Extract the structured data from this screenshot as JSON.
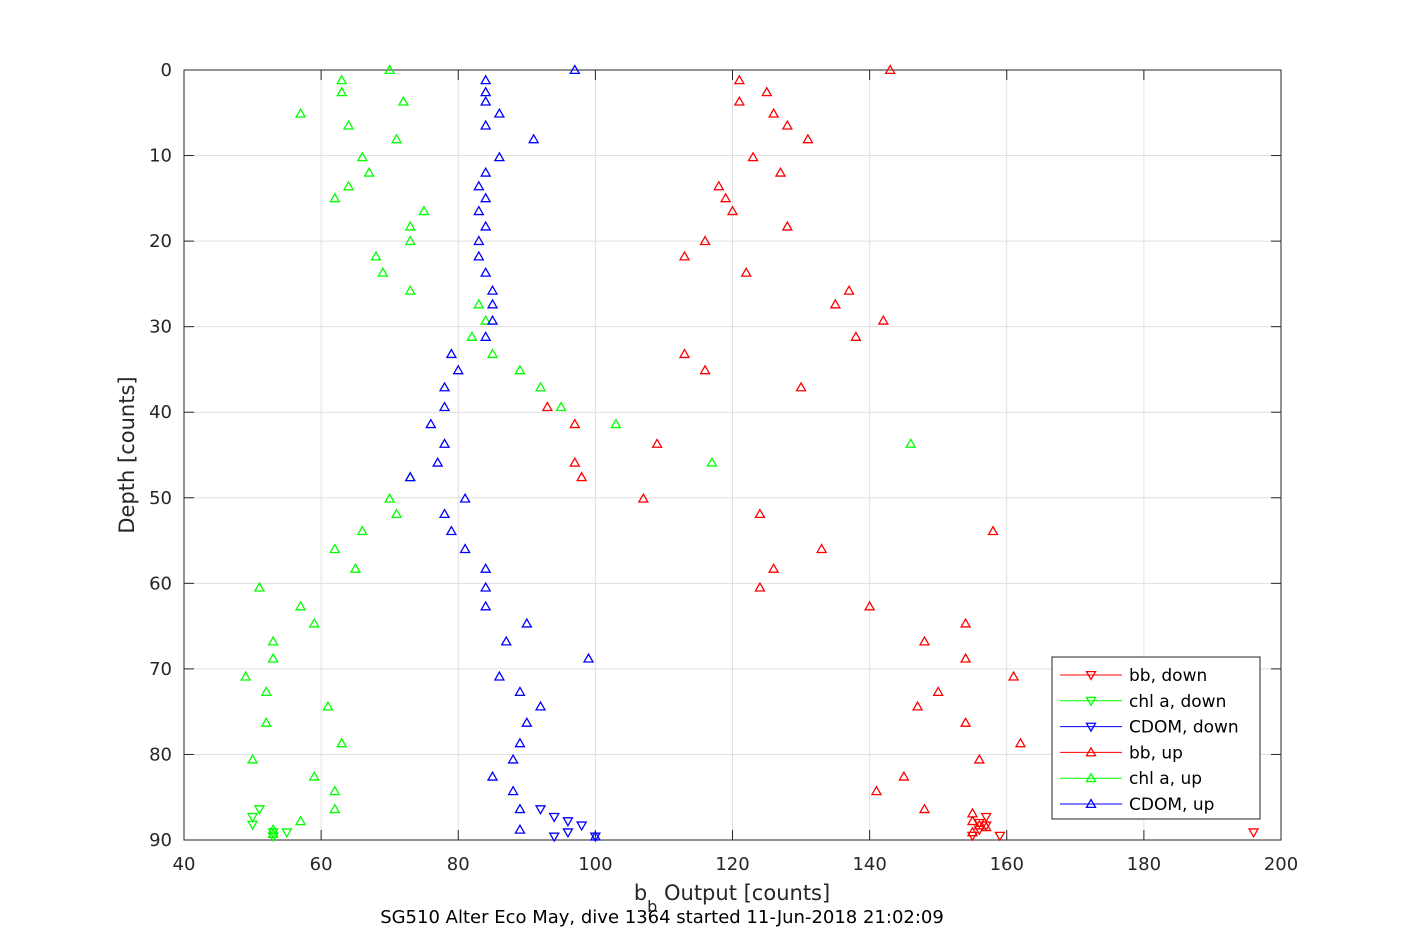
{
  "chart_data": {
    "type": "scatter",
    "xlabel_main": "b",
    "xlabel_sub": "b",
    "xlabel_rest": " Output [counts]",
    "ylabel": "Depth [counts]",
    "caption": "SG510 Alter Eco May, dive 1364 started 11-Jun-2018 21:02:09",
    "xlim": [
      40,
      200
    ],
    "ylim": [
      0,
      90
    ],
    "y_reversed": true,
    "grid": true,
    "xticks": [
      "40",
      "60",
      "80",
      "100",
      "120",
      "140",
      "160",
      "180",
      "200"
    ],
    "yticks": [
      "0",
      "10",
      "20",
      "30",
      "40",
      "50",
      "60",
      "70",
      "80",
      "90"
    ],
    "legend_position": "bottom-right",
    "series": [
      {
        "name": "bb, down",
        "color": "#ff0000",
        "marker": "triangle-down",
        "points": [
          [
            157,
            87.3
          ],
          [
            156,
            88
          ],
          [
            157,
            88.3
          ],
          [
            156,
            88.8
          ],
          [
            155,
            89.5
          ],
          [
            159,
            89.5
          ],
          [
            196,
            89.1
          ]
        ]
      },
      {
        "name": "chl a, down",
        "color": "#00ff00",
        "marker": "triangle-down",
        "points": [
          [
            51,
            86.4
          ],
          [
            50,
            87.3
          ],
          [
            50,
            88.2
          ],
          [
            53,
            89.1
          ],
          [
            55,
            89.1
          ],
          [
            53,
            89.6
          ]
        ]
      },
      {
        "name": "CDOM, down",
        "color": "#0000ff",
        "marker": "triangle-down",
        "points": [
          [
            92,
            86.4
          ],
          [
            94,
            87.3
          ],
          [
            96,
            87.8
          ],
          [
            98,
            88.3
          ],
          [
            96,
            89.1
          ],
          [
            94,
            89.6
          ],
          [
            100,
            89.6
          ]
        ]
      },
      {
        "name": "bb, up",
        "color": "#ff0000",
        "marker": "triangle-up",
        "points": [
          [
            143,
            0
          ],
          [
            121,
            1.2
          ],
          [
            125,
            2.6
          ],
          [
            121,
            3.7
          ],
          [
            126,
            5.1
          ],
          [
            128,
            6.5
          ],
          [
            131,
            8.1
          ],
          [
            123,
            10.2
          ],
          [
            127,
            12
          ],
          [
            118,
            13.6
          ],
          [
            119,
            15
          ],
          [
            120,
            16.5
          ],
          [
            128,
            18.3
          ],
          [
            116,
            20
          ],
          [
            113,
            21.8
          ],
          [
            122,
            23.7
          ],
          [
            137,
            25.8
          ],
          [
            135,
            27.4
          ],
          [
            142,
            29.3
          ],
          [
            138,
            31.2
          ],
          [
            113,
            33.2
          ],
          [
            116,
            35.1
          ],
          [
            130,
            37.1
          ],
          [
            93,
            39.4
          ],
          [
            97,
            41.4
          ],
          [
            109,
            43.7
          ],
          [
            97,
            45.9
          ],
          [
            98,
            47.6
          ],
          [
            107,
            50.1
          ],
          [
            124,
            51.9
          ],
          [
            158,
            53.9
          ],
          [
            133,
            56
          ],
          [
            126,
            58.3
          ],
          [
            124,
            60.5
          ],
          [
            140,
            62.7
          ],
          [
            154,
            64.7
          ],
          [
            148,
            66.8
          ],
          [
            154,
            68.8
          ],
          [
            161,
            70.9
          ],
          [
            150,
            72.7
          ],
          [
            147,
            74.4
          ],
          [
            154,
            76.3
          ],
          [
            162,
            78.7
          ],
          [
            156,
            80.6
          ],
          [
            145,
            82.6
          ],
          [
            141,
            84.3
          ],
          [
            148,
            86.4
          ],
          [
            155,
            86.9
          ],
          [
            155,
            87.8
          ],
          [
            156,
            88.3
          ],
          [
            157,
            88.5
          ],
          [
            155,
            89.1
          ]
        ]
      },
      {
        "name": "chl a, up",
        "color": "#00ff00",
        "marker": "triangle-up",
        "points": [
          [
            70,
            0
          ],
          [
            63,
            1.2
          ],
          [
            63,
            2.6
          ],
          [
            72,
            3.7
          ],
          [
            57,
            5.1
          ],
          [
            64,
            6.5
          ],
          [
            71,
            8.1
          ],
          [
            66,
            10.2
          ],
          [
            67,
            12
          ],
          [
            64,
            13.6
          ],
          [
            62,
            15
          ],
          [
            75,
            16.5
          ],
          [
            73,
            18.3
          ],
          [
            73,
            20
          ],
          [
            68,
            21.8
          ],
          [
            69,
            23.7
          ],
          [
            73,
            25.8
          ],
          [
            83,
            27.4
          ],
          [
            84,
            29.3
          ],
          [
            82,
            31.2
          ],
          [
            85,
            33.2
          ],
          [
            89,
            35.1
          ],
          [
            92,
            37.1
          ],
          [
            95,
            39.4
          ],
          [
            103,
            41.4
          ],
          [
            146,
            43.7
          ],
          [
            117,
            45.9
          ],
          [
            73,
            47.6
          ],
          [
            70,
            50.1
          ],
          [
            71,
            51.9
          ],
          [
            66,
            53.9
          ],
          [
            62,
            56
          ],
          [
            65,
            58.3
          ],
          [
            51,
            60.5
          ],
          [
            57,
            62.7
          ],
          [
            59,
            64.7
          ],
          [
            53,
            66.8
          ],
          [
            53,
            68.8
          ],
          [
            49,
            70.9
          ],
          [
            52,
            72.7
          ],
          [
            61,
            74.4
          ],
          [
            52,
            76.3
          ],
          [
            63,
            78.7
          ],
          [
            50,
            80.6
          ],
          [
            59,
            82.6
          ],
          [
            62,
            84.3
          ],
          [
            62,
            86.4
          ],
          [
            57,
            87.8
          ],
          [
            53,
            88.8
          ],
          [
            53,
            89.3
          ]
        ]
      },
      {
        "name": "CDOM, up",
        "color": "#0000ff",
        "marker": "triangle-up",
        "points": [
          [
            97,
            0
          ],
          [
            84,
            1.2
          ],
          [
            84,
            2.6
          ],
          [
            84,
            3.7
          ],
          [
            86,
            5.1
          ],
          [
            84,
            6.5
          ],
          [
            91,
            8.1
          ],
          [
            86,
            10.2
          ],
          [
            84,
            12
          ],
          [
            83,
            13.6
          ],
          [
            84,
            15
          ],
          [
            83,
            16.5
          ],
          [
            84,
            18.3
          ],
          [
            83,
            20
          ],
          [
            83,
            21.8
          ],
          [
            84,
            23.7
          ],
          [
            85,
            25.8
          ],
          [
            85,
            27.4
          ],
          [
            85,
            29.3
          ],
          [
            84,
            31.2
          ],
          [
            79,
            33.2
          ],
          [
            80,
            35.1
          ],
          [
            78,
            37.1
          ],
          [
            78,
            39.4
          ],
          [
            76,
            41.4
          ],
          [
            78,
            43.7
          ],
          [
            77,
            45.9
          ],
          [
            73,
            47.6
          ],
          [
            81,
            50.1
          ],
          [
            78,
            51.9
          ],
          [
            79,
            53.9
          ],
          [
            81,
            56
          ],
          [
            84,
            58.3
          ],
          [
            84,
            60.5
          ],
          [
            84,
            62.7
          ],
          [
            90,
            64.7
          ],
          [
            87,
            66.8
          ],
          [
            99,
            68.8
          ],
          [
            86,
            70.9
          ],
          [
            89,
            72.7
          ],
          [
            92,
            74.4
          ],
          [
            90,
            76.3
          ],
          [
            89,
            78.7
          ],
          [
            88,
            80.6
          ],
          [
            85,
            82.6
          ],
          [
            88,
            84.3
          ],
          [
            89,
            86.4
          ],
          [
            89,
            88.8
          ],
          [
            100,
            89.6
          ]
        ]
      }
    ]
  }
}
